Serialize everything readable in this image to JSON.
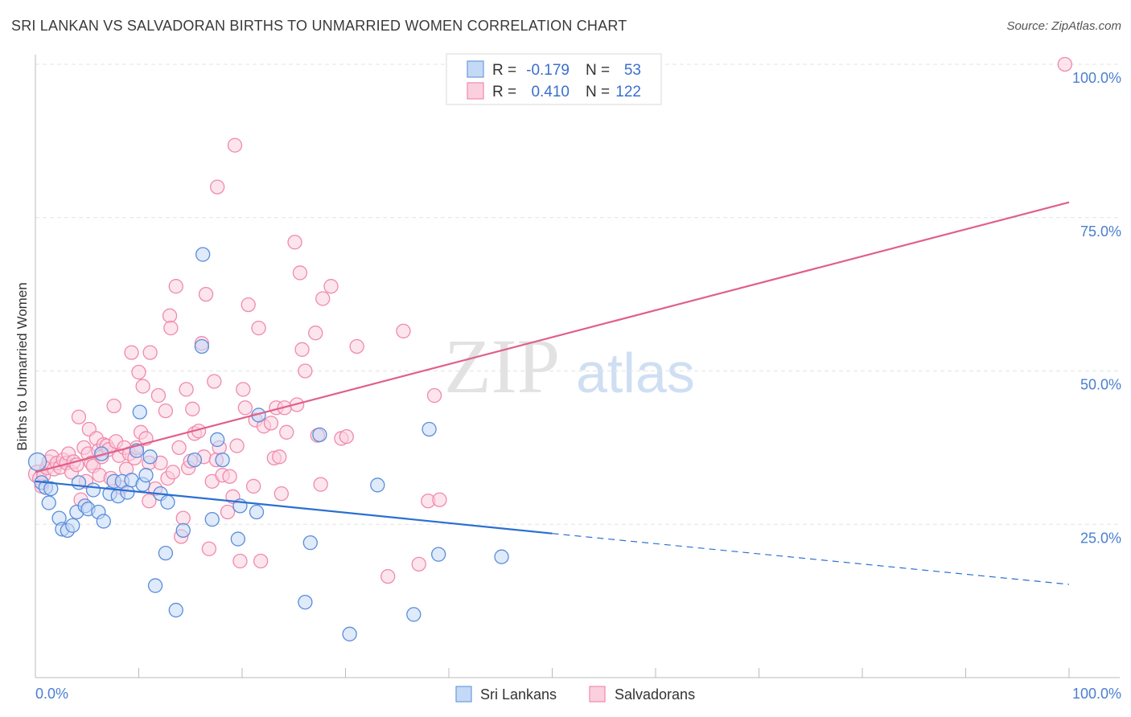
{
  "header": {
    "title": "SRI LANKAN VS SALVADORAN BIRTHS TO UNMARRIED WOMEN CORRELATION CHART",
    "source": "Source: ZipAtlas.com"
  },
  "watermark": {
    "zip": "ZIP",
    "atlas": "atlas"
  },
  "legend": {
    "r_label": "R =",
    "n_label": "N =",
    "rows": [
      {
        "r": "-0.179",
        "n": "53"
      },
      {
        "r": "0.410",
        "n": "122"
      }
    ]
  },
  "chart_data": {
    "type": "scatter",
    "title": "SRI LANKAN VS SALVADORAN BIRTHS TO UNMARRIED WOMEN CORRELATION CHART",
    "xlabel": "",
    "ylabel": "Births to Unmarried Women",
    "xlim": [
      0,
      100
    ],
    "ylim": [
      0,
      100
    ],
    "x_tick_labels": [
      "0.0%",
      "100.0%"
    ],
    "y_ticks": [
      25,
      50,
      75,
      100
    ],
    "y_tick_labels": [
      "25.0%",
      "50.0%",
      "75.0%",
      "100.0%"
    ],
    "grid": true,
    "legend_position": "top-center",
    "colors": {
      "sri_lankans": "#6a9be0",
      "salvadorans": "#f08aab",
      "sri_lankans_line": "#2a6fd0",
      "salvadorans_line": "#e0608a"
    },
    "series": [
      {
        "name": "Sri Lankans",
        "r": -0.179,
        "n": 53,
        "trend": {
          "x0": 0,
          "y0": 32.0,
          "x1": 50,
          "y1": 23.5,
          "dash_x1": 100,
          "dash_y1": 15.2
        },
        "points": [
          [
            0.2,
            35.2
          ],
          [
            0.6,
            31.8
          ],
          [
            1.0,
            31.0
          ],
          [
            1.3,
            28.5
          ],
          [
            1.5,
            30.8
          ],
          [
            2.3,
            26.0
          ],
          [
            2.6,
            24.2
          ],
          [
            3.1,
            24.0
          ],
          [
            3.6,
            24.8
          ],
          [
            4.0,
            27.0
          ],
          [
            4.2,
            31.8
          ],
          [
            4.8,
            28.0
          ],
          [
            5.1,
            27.5
          ],
          [
            5.6,
            30.6
          ],
          [
            6.1,
            27.0
          ],
          [
            6.4,
            36.5
          ],
          [
            6.6,
            25.5
          ],
          [
            7.2,
            30.0
          ],
          [
            7.6,
            32.0
          ],
          [
            8.0,
            29.6
          ],
          [
            8.4,
            32.0
          ],
          [
            8.9,
            30.2
          ],
          [
            9.3,
            32.2
          ],
          [
            9.8,
            37.0
          ],
          [
            10.1,
            43.3
          ],
          [
            10.4,
            31.5
          ],
          [
            10.7,
            33.0
          ],
          [
            11.1,
            36.0
          ],
          [
            11.6,
            15.0
          ],
          [
            12.1,
            30.0
          ],
          [
            12.6,
            20.3
          ],
          [
            12.8,
            28.6
          ],
          [
            13.6,
            11.0
          ],
          [
            14.3,
            24.0
          ],
          [
            15.4,
            35.5
          ],
          [
            16.1,
            54.0
          ],
          [
            16.2,
            69.0
          ],
          [
            17.1,
            25.8
          ],
          [
            17.6,
            38.8
          ],
          [
            18.1,
            35.5
          ],
          [
            19.6,
            22.6
          ],
          [
            19.8,
            28.0
          ],
          [
            21.4,
            27.0
          ],
          [
            21.6,
            42.8
          ],
          [
            26.1,
            12.3
          ],
          [
            26.6,
            22.0
          ],
          [
            27.5,
            39.6
          ],
          [
            30.4,
            7.1
          ],
          [
            33.1,
            31.4
          ],
          [
            36.6,
            10.3
          ],
          [
            38.1,
            40.5
          ],
          [
            39.0,
            20.1
          ],
          [
            45.1,
            19.7
          ]
        ]
      },
      {
        "name": "Salvadorans",
        "r": 0.41,
        "n": 122,
        "trend": {
          "x0": 0,
          "y0": 33.5,
          "x1": 100,
          "y1": 77.5
        },
        "points": [
          [
            0.2,
            33.2
          ],
          [
            0.4,
            32.5
          ],
          [
            0.6,
            31.2
          ],
          [
            0.8,
            33.0
          ],
          [
            1.1,
            34.2
          ],
          [
            1.3,
            35.2
          ],
          [
            1.6,
            36.0
          ],
          [
            1.8,
            34.0
          ],
          [
            2.1,
            35.0
          ],
          [
            2.4,
            34.3
          ],
          [
            2.7,
            35.5
          ],
          [
            3.0,
            35.0
          ],
          [
            3.2,
            36.5
          ],
          [
            3.5,
            33.5
          ],
          [
            3.7,
            35.2
          ],
          [
            4.0,
            34.7
          ],
          [
            4.2,
            42.5
          ],
          [
            4.4,
            29.0
          ],
          [
            4.7,
            37.5
          ],
          [
            4.9,
            32.0
          ],
          [
            5.1,
            36.5
          ],
          [
            5.2,
            40.5
          ],
          [
            5.4,
            35.0
          ],
          [
            5.6,
            34.5
          ],
          [
            5.9,
            39.0
          ],
          [
            6.1,
            37.0
          ],
          [
            6.2,
            33.0
          ],
          [
            6.4,
            36.0
          ],
          [
            6.6,
            38.0
          ],
          [
            6.9,
            37.8
          ],
          [
            7.1,
            37.2
          ],
          [
            7.3,
            32.5
          ],
          [
            7.6,
            44.3
          ],
          [
            7.8,
            38.5
          ],
          [
            8.1,
            36.2
          ],
          [
            8.3,
            31.0
          ],
          [
            8.6,
            37.5
          ],
          [
            8.8,
            34.0
          ],
          [
            9.1,
            36.5
          ],
          [
            9.3,
            53.0
          ],
          [
            9.6,
            35.8
          ],
          [
            9.8,
            37.5
          ],
          [
            10.0,
            49.8
          ],
          [
            10.2,
            40.0
          ],
          [
            10.4,
            47.5
          ],
          [
            10.7,
            39.0
          ],
          [
            11.0,
            28.8
          ],
          [
            11.0,
            35.0
          ],
          [
            11.1,
            53.0
          ],
          [
            11.6,
            30.8
          ],
          [
            11.9,
            46.0
          ],
          [
            12.1,
            35.0
          ],
          [
            12.6,
            43.5
          ],
          [
            12.8,
            32.5
          ],
          [
            13.0,
            59.0
          ],
          [
            13.1,
            57.0
          ],
          [
            13.3,
            33.5
          ],
          [
            13.6,
            63.8
          ],
          [
            13.9,
            37.5
          ],
          [
            14.1,
            23.0
          ],
          [
            14.3,
            26.0
          ],
          [
            14.6,
            47.0
          ],
          [
            14.8,
            34.2
          ],
          [
            15.0,
            35.3
          ],
          [
            15.2,
            43.8
          ],
          [
            15.4,
            39.8
          ],
          [
            15.8,
            40.2
          ],
          [
            16.1,
            54.5
          ],
          [
            16.3,
            36.0
          ],
          [
            16.5,
            62.5
          ],
          [
            16.8,
            21.0
          ],
          [
            17.1,
            32.0
          ],
          [
            17.3,
            48.3
          ],
          [
            17.5,
            35.5
          ],
          [
            17.6,
            80.0
          ],
          [
            17.8,
            37.5
          ],
          [
            18.1,
            33.0
          ],
          [
            18.6,
            27.0
          ],
          [
            18.8,
            32.8
          ],
          [
            19.1,
            29.5
          ],
          [
            19.3,
            86.8
          ],
          [
            19.5,
            37.8
          ],
          [
            19.8,
            19.0
          ],
          [
            20.1,
            47.0
          ],
          [
            20.3,
            44.0
          ],
          [
            20.6,
            60.8
          ],
          [
            21.1,
            31.2
          ],
          [
            21.3,
            42.0
          ],
          [
            21.6,
            57.0
          ],
          [
            21.8,
            19.0
          ],
          [
            22.1,
            41.0
          ],
          [
            22.8,
            41.5
          ],
          [
            23.1,
            35.8
          ],
          [
            23.3,
            44.0
          ],
          [
            23.6,
            36.0
          ],
          [
            23.8,
            30.0
          ],
          [
            24.1,
            44.0
          ],
          [
            24.3,
            40.0
          ],
          [
            25.1,
            71.0
          ],
          [
            25.3,
            44.5
          ],
          [
            25.6,
            66.0
          ],
          [
            25.8,
            53.5
          ],
          [
            26.1,
            50.0
          ],
          [
            27.1,
            56.2
          ],
          [
            27.3,
            39.5
          ],
          [
            27.6,
            31.5
          ],
          [
            27.8,
            61.8
          ],
          [
            28.6,
            63.8
          ],
          [
            29.6,
            39.0
          ],
          [
            30.1,
            39.3
          ],
          [
            31.1,
            54.0
          ],
          [
            34.1,
            16.5
          ],
          [
            35.6,
            56.5
          ],
          [
            37.1,
            18.5
          ],
          [
            38.0,
            28.8
          ],
          [
            38.6,
            46.0
          ],
          [
            39.1,
            29.0
          ],
          [
            99.6,
            100.0
          ]
        ]
      }
    ]
  },
  "bottom_legend": [
    "Sri Lankans",
    "Salvadorans"
  ]
}
